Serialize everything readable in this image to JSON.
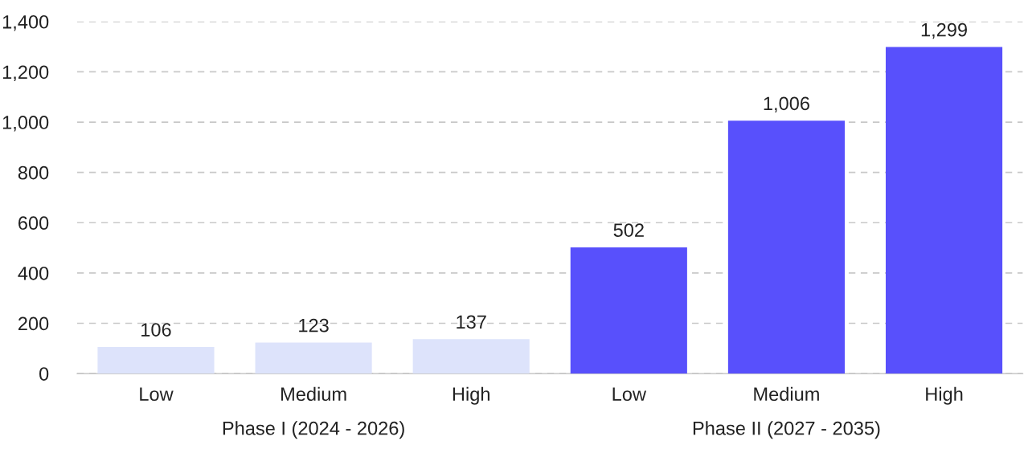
{
  "chart_data": {
    "type": "bar",
    "categories": [
      "Low",
      "Medium",
      "High",
      "Low",
      "Medium",
      "High"
    ],
    "values": [
      106,
      123,
      137,
      502,
      1006,
      1299
    ],
    "colors": [
      "#dde3fb",
      "#dde3fb",
      "#dde3fb",
      "#5850fc",
      "#5850fc",
      "#5850fc"
    ],
    "value_labels": [
      "106",
      "123",
      "137",
      "502",
      "1,006",
      "1,299"
    ],
    "ylim": [
      0,
      1400
    ],
    "yticks": [
      0,
      200,
      400,
      600,
      800,
      {
        "value": 1000,
        "label": "1,000"
      },
      {
        "value": 1200,
        "label": "1,200"
      },
      {
        "value": 1400,
        "label": "1,400"
      }
    ],
    "grid": "y",
    "annotations": [
      "Phase I (2024 - 2026)",
      "Phase II (2027 - 2035)"
    ]
  }
}
